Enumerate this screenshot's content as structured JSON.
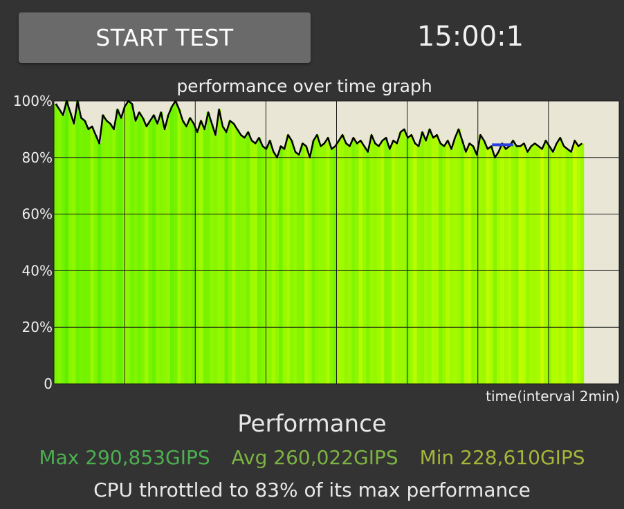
{
  "controls": {
    "start_label": "START TEST",
    "timer": "15:00:1"
  },
  "graph": {
    "title": "performance over time graph",
    "x_label": "time(interval 2min)"
  },
  "colors": {
    "background": "#333333",
    "plot_bg": "#e9e6d6",
    "bar_green": "#5ef000",
    "bar_yellow": "#c8ff00",
    "line": "#000000",
    "highlight": "#2a3fe0",
    "max": "#4caf50",
    "avg": "#7cb342",
    "min": "#a6b63a"
  },
  "chart_data": {
    "type": "area",
    "title": "performance over time graph",
    "xlabel": "time(interval 2min)",
    "ylabel": "",
    "ylim": [
      0,
      100
    ],
    "y_ticks": [
      "0",
      "20%",
      "40%",
      "60%",
      "80%",
      "100%"
    ],
    "x_interval_minutes": 2,
    "x_range_minutes": [
      0,
      16
    ],
    "x_visible_minutes": 15,
    "grid": true,
    "series": [
      {
        "values": [
          99,
          97,
          95,
          100,
          96,
          92,
          100,
          94,
          93,
          90,
          91,
          88,
          85,
          95,
          93,
          92,
          90,
          97,
          94,
          98,
          100,
          99,
          93,
          96,
          94,
          91,
          93,
          95,
          92,
          96,
          90,
          95,
          98,
          100,
          97,
          93,
          91,
          94,
          92,
          89,
          93,
          90,
          96,
          92,
          88,
          97,
          91,
          89,
          93,
          92,
          90,
          88,
          87,
          89,
          86,
          85,
          87,
          84,
          83,
          86,
          82,
          80,
          84,
          83,
          88,
          86,
          82,
          81,
          85,
          84,
          80,
          86,
          88,
          84,
          85,
          87,
          83,
          84,
          86,
          88,
          85,
          84,
          87,
          85,
          86,
          84,
          82,
          88,
          85,
          84,
          86,
          87,
          83,
          86,
          85,
          89,
          90,
          87,
          88,
          85,
          84,
          89,
          86,
          90,
          87,
          88,
          85,
          84,
          86,
          83,
          87,
          90,
          86,
          82,
          85,
          84,
          81,
          88,
          86,
          83,
          84,
          80,
          82,
          85,
          83,
          84,
          86,
          84,
          84,
          85,
          82,
          84,
          85,
          84,
          83,
          86,
          84,
          82,
          85,
          87,
          84,
          83,
          82,
          86,
          84,
          85
        ]
      }
    ],
    "highlight": {
      "x_minutes": [
        12.4,
        13.0
      ],
      "value": 84.5
    }
  },
  "stats": {
    "title": "Performance",
    "max": "Max 290,853GIPS",
    "avg": "Avg 260,022GIPS",
    "min": "Min 228,610GIPS",
    "throttle": "CPU throttled to 83% of its max performance"
  }
}
